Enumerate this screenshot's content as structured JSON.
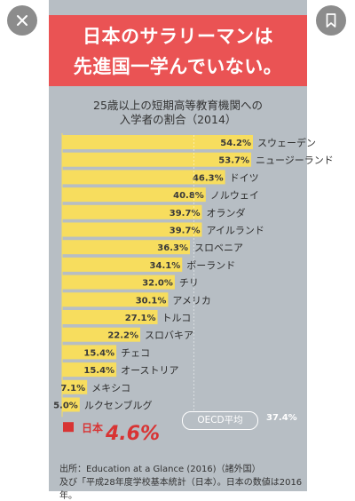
{
  "ui": {
    "close_icon": "close-icon",
    "share_icon": "share-icon",
    "bookmark_icon": "bookmark-icon"
  },
  "headline": {
    "line1": "日本のサラリーマンは",
    "line2": "先進国一学んでいない。"
  },
  "chart_data": {
    "type": "bar",
    "orientation": "horizontal",
    "title": "25歳以上の短期高等教育機関への",
    "subtitle": "入学者の割合（2014）",
    "xlim": [
      0,
      60
    ],
    "unit": "%",
    "categories": [
      "スウェーデン",
      "ニュージーランド",
      "ドイツ",
      "ノルウェイ",
      "オランダ",
      "アイルランド",
      "スロベニア",
      "ポーランド",
      "チリ",
      "アメリカ",
      "トルコ",
      "スロバキア",
      "チェコ",
      "オーストリア",
      "メキシコ",
      "ルクセンブルグ",
      "日本"
    ],
    "values": [
      54.2,
      53.7,
      46.3,
      40.8,
      39.7,
      39.7,
      36.3,
      34.1,
      32.0,
      30.1,
      27.1,
      22.2,
      15.4,
      15.4,
      7.1,
      5.0,
      4.6
    ],
    "value_labels": [
      "54.2%",
      "53.7%",
      "46.3%",
      "40.8%",
      "39.7%",
      "39.7%",
      "36.3%",
      "34.1%",
      "32.0%",
      "30.1%",
      "27.1%",
      "22.2%",
      "15.4%",
      "15.4%",
      "7.1%",
      "5.0%",
      "4.6%"
    ],
    "highlight": {
      "category": "日本",
      "label": "日本",
      "value_label": "4.6%",
      "color": "#d83434"
    },
    "reference_line": {
      "label": "OECD平均",
      "value": 37.4,
      "value_label": "37.4%"
    },
    "bar_color": "#f7dd5e",
    "grid": false
  },
  "source": {
    "line1": "出所：Education at a Glance (2016)（諸外国）",
    "line2": "及び「平成28年度学校基本統計（日本）。日本の数値は2016年。"
  }
}
